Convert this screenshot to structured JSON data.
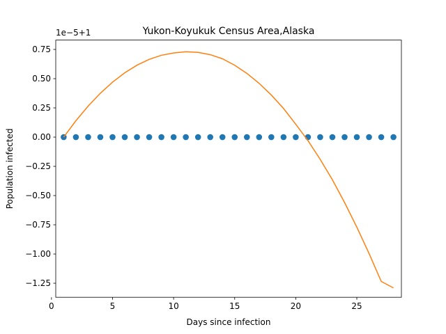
{
  "chart_data": {
    "type": "scatter",
    "title": "Yukon-Koyukuk Census Area,Alaska",
    "xlabel": "Days since infection",
    "ylabel": "Population infected",
    "offset_text": "1e−5+1",
    "xlim": [
      0.35,
      28.65
    ],
    "ylim": [
      -1.37,
      0.83
    ],
    "x_ticks": [
      0,
      5,
      10,
      15,
      20,
      25
    ],
    "x_tick_labels": [
      "0",
      "5",
      "10",
      "15",
      "20",
      "25"
    ],
    "y_ticks": [
      -1.25,
      -1.0,
      -0.75,
      -0.5,
      -0.25,
      0.0,
      0.25,
      0.5,
      0.75
    ],
    "y_tick_labels": [
      "−1.25",
      "−1.00",
      "−0.75",
      "−0.50",
      "−0.25",
      "0.00",
      "0.25",
      "0.50",
      "0.75"
    ],
    "grid": false,
    "series": [
      {
        "kind": "scatter",
        "color": "#1f77b4",
        "x": [
          1,
          2,
          3,
          4,
          5,
          6,
          7,
          8,
          9,
          10,
          11,
          12,
          13,
          14,
          15,
          16,
          17,
          18,
          19,
          20,
          21,
          22,
          23,
          24,
          25,
          26,
          27,
          28
        ],
        "y": [
          0,
          0,
          0,
          0,
          0,
          0,
          0,
          0,
          0,
          0,
          0,
          0,
          0,
          0,
          0,
          0,
          0,
          0,
          0,
          0,
          0,
          0,
          0,
          0,
          0,
          0,
          0,
          0
        ]
      },
      {
        "kind": "line",
        "color": "#ff7f0e",
        "x": [
          1,
          2,
          3,
          4,
          5,
          6,
          7,
          8,
          9,
          10,
          11,
          12,
          13,
          14,
          15,
          16,
          17,
          18,
          19,
          20,
          21,
          22,
          23,
          24,
          25,
          26,
          27,
          28
        ],
        "y": [
          0.0,
          0.14,
          0.265,
          0.375,
          0.47,
          0.55,
          0.615,
          0.665,
          0.7,
          0.72,
          0.73,
          0.725,
          0.705,
          0.67,
          0.615,
          0.545,
          0.46,
          0.36,
          0.245,
          0.11,
          -0.03,
          -0.19,
          -0.365,
          -0.56,
          -0.77,
          -0.995,
          -1.235,
          -1.29
        ]
      }
    ]
  }
}
